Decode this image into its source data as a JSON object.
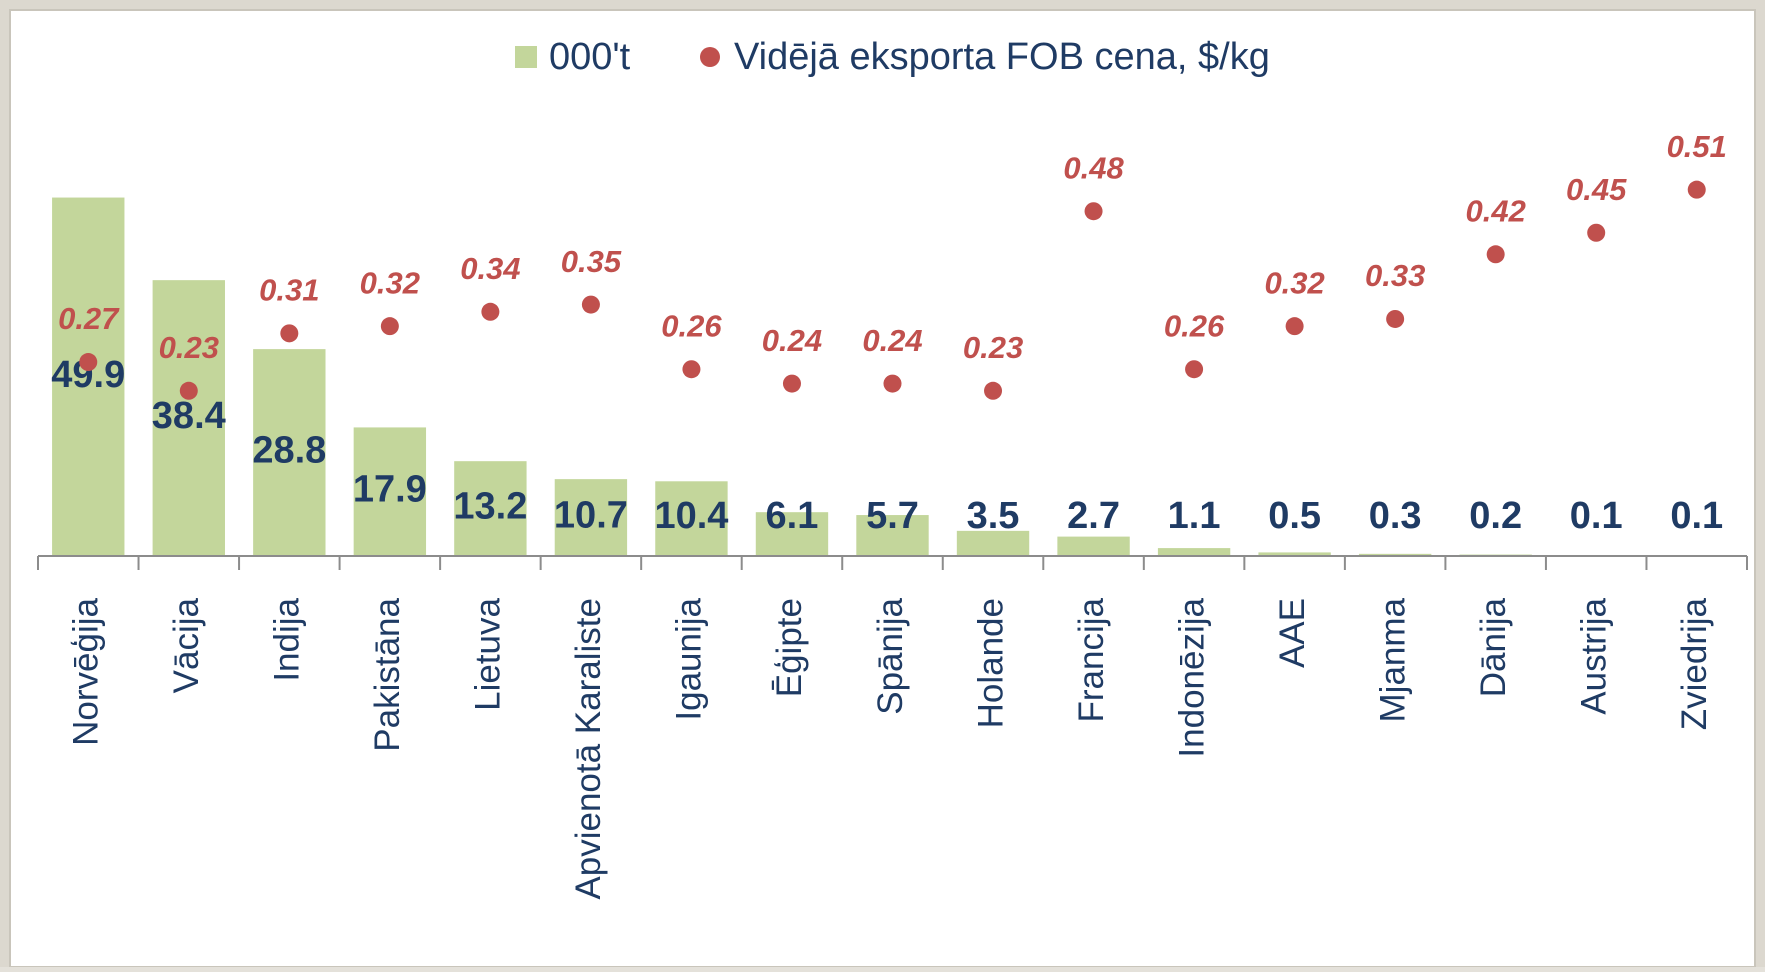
{
  "chart_data": {
    "type": "bar",
    "categories": [
      "Norvēģija",
      "Vācija",
      "Indija",
      "Pakistāna",
      "Lietuva",
      "Apvienotā Karaliste",
      "Igaunija",
      "Ēģipte",
      "Spānija",
      "Holande",
      "Francija",
      "Indonēzija",
      "AAE",
      "Mjanma",
      "Dānija",
      "Austrija",
      "Zviedrija"
    ],
    "series": [
      {
        "name": "000't",
        "type": "bar",
        "color": "#c3d69b",
        "values": [
          49.9,
          38.4,
          28.8,
          17.9,
          13.2,
          10.7,
          10.4,
          6.1,
          5.7,
          3.5,
          2.7,
          1.1,
          0.5,
          0.3,
          0.2,
          0.1,
          0.1
        ]
      },
      {
        "name": "Vidējā eksporta FOB cena, $/kg",
        "type": "scatter",
        "axis": "y2",
        "color": "#c0504d",
        "values": [
          0.27,
          0.23,
          0.31,
          0.32,
          0.34,
          0.35,
          0.26,
          0.24,
          0.24,
          0.23,
          0.48,
          0.26,
          0.32,
          0.33,
          0.42,
          0.45,
          0.51
        ]
      }
    ],
    "ylim": [
      0,
      60
    ],
    "y2lim": [
      0,
      0.6
    ],
    "legend": "top"
  }
}
